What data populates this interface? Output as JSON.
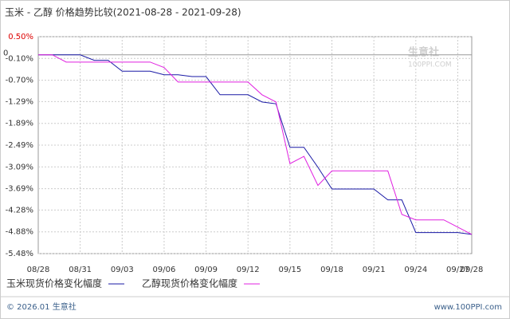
{
  "chart_data": {
    "type": "line",
    "title": "玉米 - 乙醇 价格趋势比较(2021-08-28 - 2021-09-28)",
    "zero_label": "0",
    "watermark": {
      "name": "生意社",
      "site": "100PPI.COM"
    },
    "categories": [
      "08/28",
      null,
      null,
      "08/31",
      null,
      null,
      "09/03",
      null,
      null,
      "09/06",
      null,
      null,
      "09/09",
      null,
      null,
      "09/12",
      null,
      null,
      "09/15",
      null,
      null,
      "09/18",
      null,
      null,
      "09/21",
      null,
      null,
      "09/24",
      null,
      null,
      "09/27",
      "09/28"
    ],
    "series": [
      {
        "name": "玉米现货价格变化幅度",
        "color": "#1a1aa6",
        "values": [
          0,
          0,
          0,
          0,
          -0.15,
          -0.15,
          -0.45,
          -0.45,
          -0.45,
          -0.55,
          -0.55,
          -0.6,
          -0.6,
          -1.1,
          -1.1,
          -1.1,
          -1.3,
          -1.35,
          -2.55,
          -2.55,
          -3.1,
          -3.7,
          -3.7,
          -3.7,
          -3.7,
          -4.0,
          -4.0,
          -4.9,
          -4.9,
          -4.9,
          -4.9,
          -4.95
        ]
      },
      {
        "name": "乙醇现货价格变化幅度",
        "color": "#e020e0",
        "values": [
          0,
          0,
          -0.2,
          -0.2,
          -0.2,
          -0.2,
          -0.2,
          -0.2,
          -0.2,
          -0.35,
          -0.75,
          -0.75,
          -0.75,
          -0.75,
          -0.75,
          -0.75,
          -1.1,
          -1.3,
          -3.0,
          -2.8,
          -3.6,
          -3.2,
          -3.2,
          -3.2,
          -3.2,
          -3.2,
          -4.4,
          -4.55,
          -4.55,
          -4.55,
          -4.75,
          -4.95
        ]
      }
    ],
    "ylim": [
      -5.48,
      0.5
    ],
    "yticks": [
      {
        "value": 0.5,
        "label": "0.50%"
      },
      {
        "value": -0.1,
        "label": "-0.10%"
      },
      {
        "value": -0.7,
        "label": "-0.70%"
      },
      {
        "value": -1.29,
        "label": "-1.29%"
      },
      {
        "value": -1.89,
        "label": "-1.89%"
      },
      {
        "value": -2.49,
        "label": "-2.49%"
      },
      {
        "value": -3.09,
        "label": "-3.09%"
      },
      {
        "value": -3.69,
        "label": "-3.69%"
      },
      {
        "value": -4.28,
        "label": "-4.28%"
      },
      {
        "value": -4.88,
        "label": "-4.88%"
      },
      {
        "value": -5.48,
        "label": "-5.48%"
      }
    ],
    "grid": true,
    "footer": {
      "left": "© 2026.01 生意社",
      "right": "www.100PPI.com"
    }
  }
}
